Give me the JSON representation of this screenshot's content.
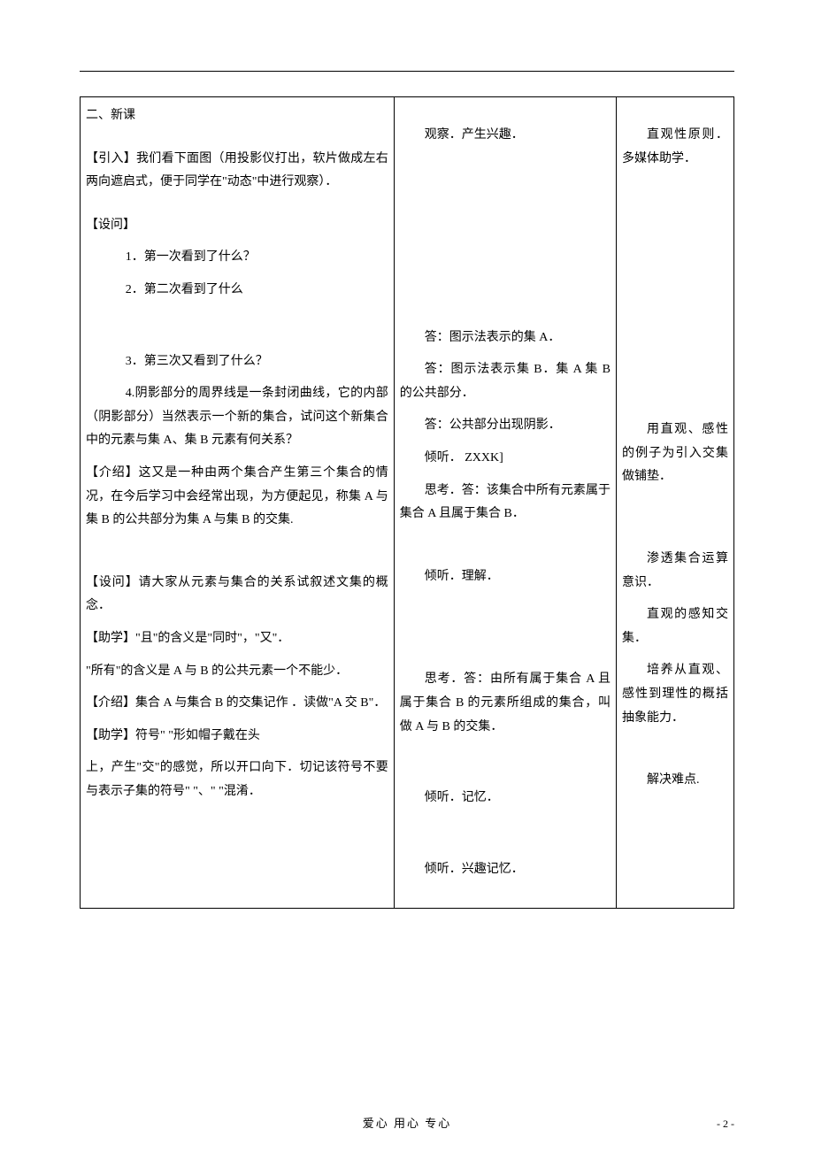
{
  "col1": {
    "section_title": "二、新课",
    "intro": "【引入】我们看下面图（用投影仪打出，软片做成左右两向遮启式，便于同学在\"动态\"中进行观察）．",
    "shewen_label": "【设问】",
    "q1": "1．第一次看到了什么？",
    "q2": "2．第二次看到了什么",
    "q3": "3．第三次又看到了什么？",
    "q4": "4.阴影部分的周界线是一条封闭曲线，它的内部（阴影部分）当然表示一个新的集合，试问这个新集合中的元素与集 A、集 B 元素有何关系？",
    "jieshao1": "【介绍】这又是一种由两个集合产生第三个集合的情况，在今后学习中会经常出现，为方便起见，称集 A 与集 B 的公共部分为集 A 与集 B 的交集.",
    "shewen2": "【设问】请大家从元素与集合的关系试叙述文集的概念．",
    "zhuxue1": "【助学】\"且\"的含义是\"同时\"，\"又\"．",
    "suoyou": "\"所有\"的含义是 A 与 B 的公共元素一个不能少．",
    "jieshao2": "【介绍】集合 A 与集合 B 的交集记作 ．读做\"A 交 B\"．",
    "zhuxue2": "【助学】符号\" \"形如帽子戴在头",
    "tail": "上，产生\"交\"的感觉，所以开口向下．切记该符号不要与表示子集的符号\" \"、\" \"混淆．"
  },
  "col2": {
    "a0": "观察．产生兴趣．",
    "a1": "答：图示法表示的集 A．",
    "a2": "答：图示法表示集 B．集 A 集 B 的公共部分．",
    "a3": "答：公共部分出现阴影．",
    "a4": "倾听．   ZXXK]",
    "a5": "思考．答：该集合中所有元素属于集合 A 且属于集合 B．",
    "a6": "倾听．理解．",
    "a7": "思考．答：由所有属于集合 A 且属于集合 B 的元素所组成的集合，叫做 A 与 B 的交集．",
    "a8": "倾听．记忆．",
    "a9": "倾听．兴趣记忆．"
  },
  "col3": {
    "n1": "直观性原则．多媒体助学．",
    "n2": "用直观、感性的例子为引入交集做铺垫．",
    "n3": "渗透集合运算意识．",
    "n4": "直观的感知交集．",
    "n5": "培养从直观、感性到理性的概括抽象能力．",
    "n6": "解决难点."
  },
  "footer": {
    "center": "爱心    用心    专心",
    "page": "- 2 -"
  }
}
